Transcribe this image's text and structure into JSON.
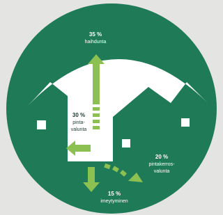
{
  "labels": [
    {
      "lines": [
        "35 %",
        "haihdunta"
      ]
    },
    {
      "lines": [
        "30 %",
        "pinta-",
        "valunta"
      ]
    },
    {
      "lines": [
        "20 %",
        "pintakerros-",
        "valunta"
      ]
    },
    {
      "lines": [
        "15 %",
        "imeytyminen"
      ]
    }
  ]
}
